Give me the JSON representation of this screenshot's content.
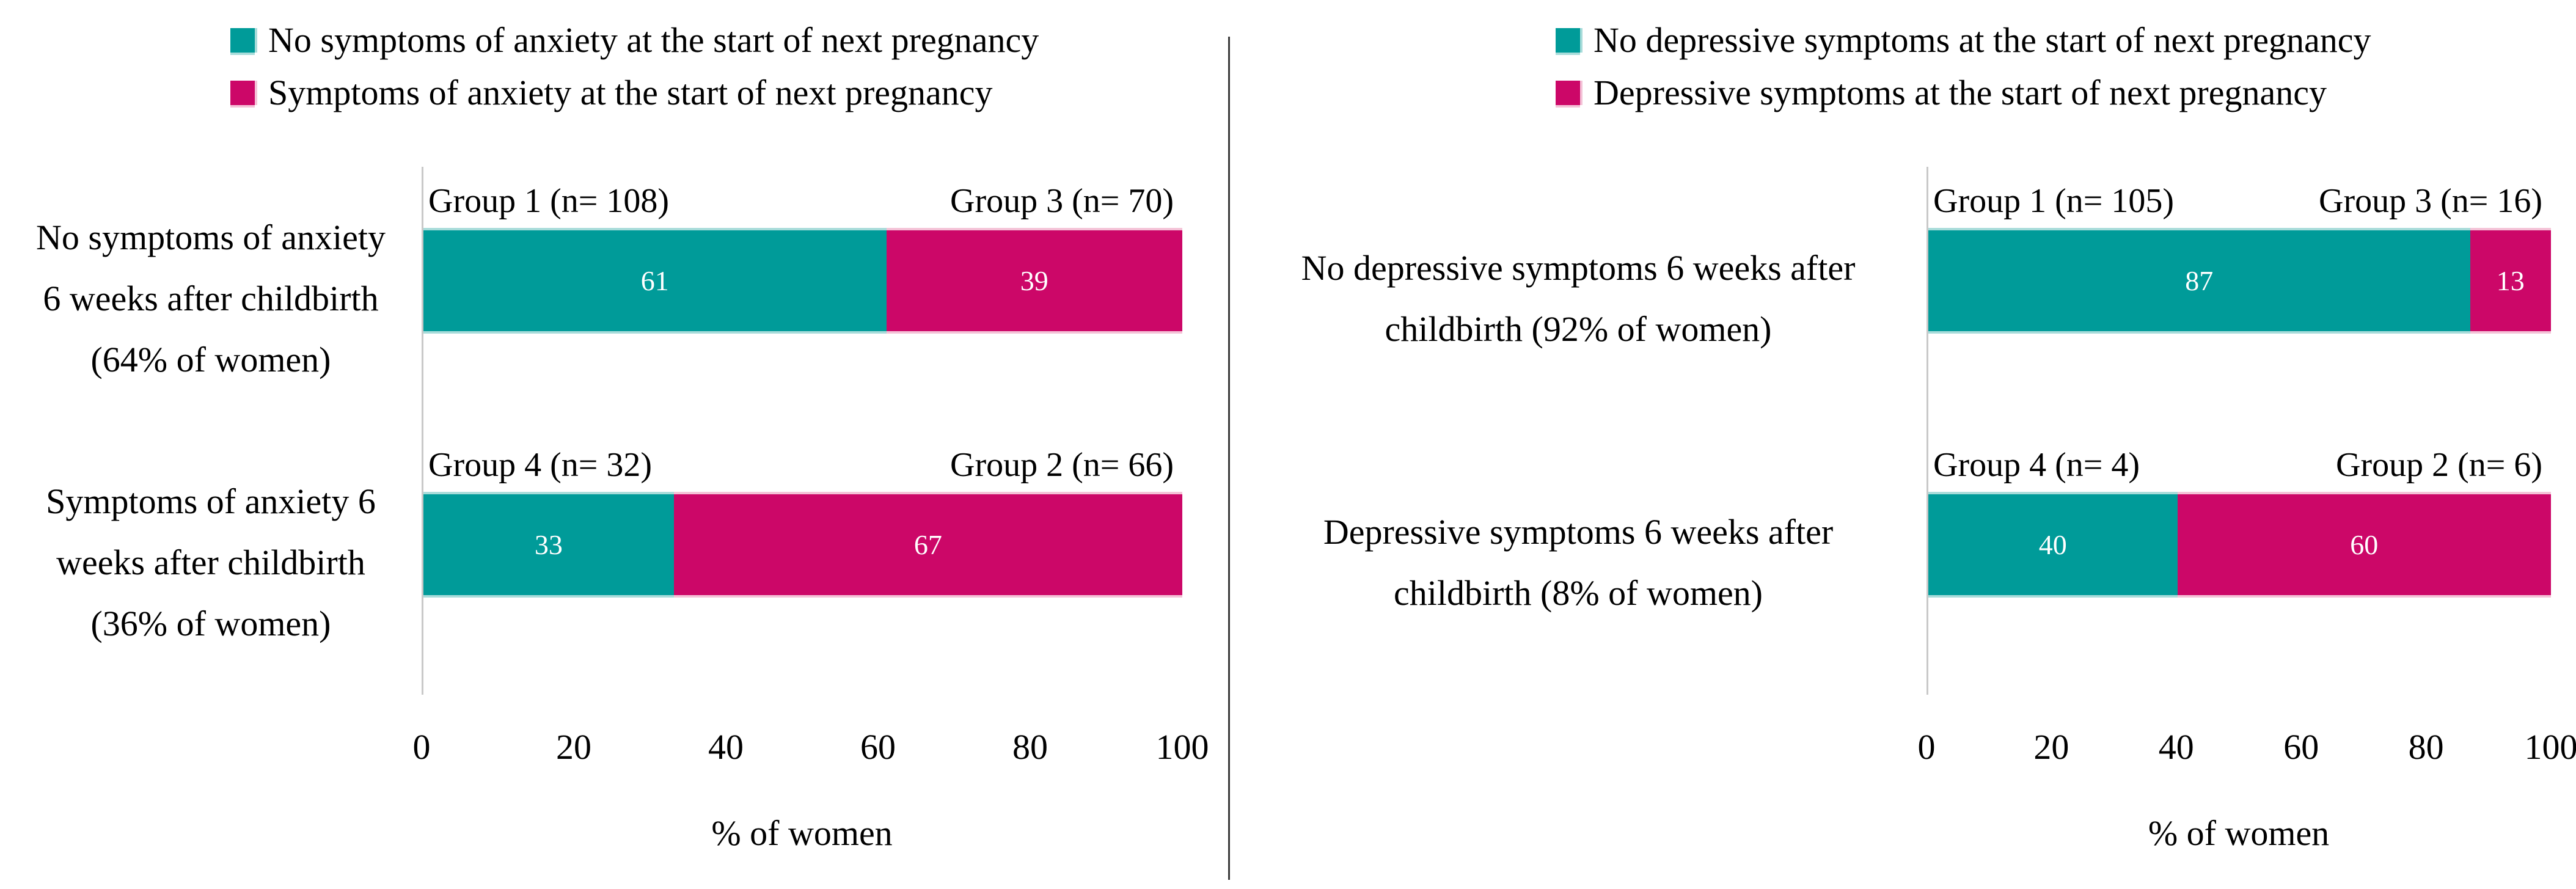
{
  "figure_title": "",
  "colors": {
    "teal": "#009B99",
    "magenta": "#CC0768",
    "teal_edge": "#A8DCDA",
    "magenta_edge": "#F4C2D7",
    "axis_line": "#c9c9c9",
    "divider": "#3a3a3a",
    "value_text": "#ffffff"
  },
  "chart_data": [
    {
      "type": "bar",
      "orientation": "horizontal",
      "stacked": true,
      "xlabel": "% of women",
      "xlim": [
        0,
        100
      ],
      "x_ticks": [
        "0",
        "20",
        "40",
        "60",
        "80",
        "100"
      ],
      "legend": [
        {
          "label": "No symptoms of anxiety at the start of next pregnancy",
          "color": "#009B99"
        },
        {
          "label": "Symptoms of anxiety at the start of next pregnancy",
          "color": "#CC0768"
        }
      ],
      "rows": [
        {
          "category": "No symptoms of anxiety 6 weeks after childbirth (64% of women)",
          "segments": [
            {
              "group_label": "Group 1 (n= 108)",
              "value": 61,
              "series": "No symptoms of anxiety at the start of next pregnancy"
            },
            {
              "group_label": "Group 3 (n= 70)",
              "value": 39,
              "series": "Symptoms of anxiety at the start of next pregnancy"
            }
          ]
        },
        {
          "category": "Symptoms of anxiety 6 weeks after childbirth (36% of women)",
          "segments": [
            {
              "group_label": "Group 4 (n= 32)",
              "value": 33,
              "series": "No symptoms of anxiety at the start of next pregnancy"
            },
            {
              "group_label": "Group 2 (n= 66)",
              "value": 67,
              "series": "Symptoms of anxiety at the start of next pregnancy"
            }
          ]
        }
      ]
    },
    {
      "type": "bar",
      "orientation": "horizontal",
      "stacked": true,
      "xlabel": "% of women",
      "xlim": [
        0,
        100
      ],
      "x_ticks": [
        "0",
        "20",
        "40",
        "60",
        "80",
        "100"
      ],
      "legend": [
        {
          "label": "No depressive symptoms at the start of next pregnancy",
          "color": "#009B99"
        },
        {
          "label": "Depressive symptoms at the start of next pregnancy",
          "color": "#CC0768"
        }
      ],
      "rows": [
        {
          "category": "No depressive symptoms 6 weeks after childbirth (92% of women)",
          "segments": [
            {
              "group_label": "Group 1 (n= 105)",
              "value": 87,
              "series": "No depressive symptoms at the start of next pregnancy"
            },
            {
              "group_label": "Group 3 (n= 16)",
              "value": 13,
              "series": "Depressive symptoms at the start of next pregnancy"
            }
          ]
        },
        {
          "category": "Depressive symptoms 6 weeks after childbirth (8% of women)",
          "segments": [
            {
              "group_label": "Group 4 (n= 4)",
              "value": 40,
              "series": "No depressive symptoms at the start of next pregnancy"
            },
            {
              "group_label": "Group 2 (n= 6)",
              "value": 60,
              "series": "Depressive symptoms at the start of next pregnancy"
            }
          ]
        }
      ]
    }
  ]
}
